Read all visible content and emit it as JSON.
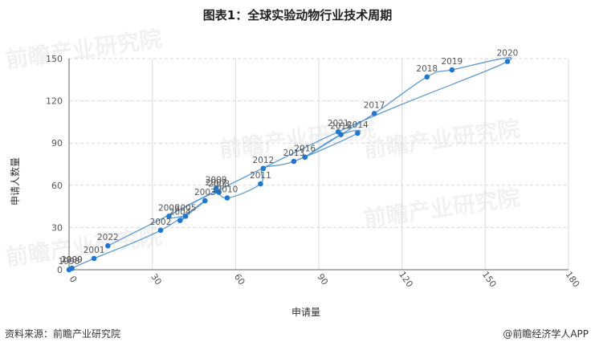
{
  "title": "图表1：全球实验动物行业技术周期",
  "footer": {
    "source": "资料来源：前瞻产业研究院",
    "brand": "@前瞻经济学人APP"
  },
  "watermark": "前瞻产业研究院",
  "colors": {
    "line": "#5b9bd5",
    "point": "#1f77d0",
    "grid": "#d9d9d9",
    "axis": "#666666"
  },
  "chart_data": {
    "type": "line",
    "xlabel": "申请量",
    "ylabel": "申请人数量",
    "xlim": [
      0,
      180
    ],
    "ylim": [
      0,
      150
    ],
    "xticks": [
      0,
      30,
      60,
      90,
      120,
      150,
      180
    ],
    "yticks": [
      0,
      30,
      60,
      90,
      120,
      150
    ],
    "grid": {
      "x": true,
      "y": true
    },
    "series": [
      {
        "points": [
          {
            "label": "1998",
            "x": 0,
            "y": 0
          },
          {
            "label": "1999",
            "x": 1,
            "y": 1
          },
          {
            "label": "2000",
            "x": 1,
            "y": 1
          },
          {
            "label": "2001",
            "x": 9,
            "y": 8
          },
          {
            "label": "2002",
            "x": 33,
            "y": 28
          },
          {
            "label": "2003",
            "x": 49,
            "y": 49
          },
          {
            "label": "2004",
            "x": 40,
            "y": 35
          },
          {
            "label": "2005",
            "x": 42,
            "y": 38
          },
          {
            "label": "2006",
            "x": 36,
            "y": 38
          },
          {
            "label": "2007",
            "x": 53,
            "y": 56
          },
          {
            "label": "2008",
            "x": 54,
            "y": 55
          },
          {
            "label": "2009",
            "x": 53,
            "y": 58
          },
          {
            "label": "2010",
            "x": 57,
            "y": 51
          },
          {
            "label": "2011",
            "x": 69,
            "y": 61
          },
          {
            "label": "2012",
            "x": 70,
            "y": 72
          },
          {
            "label": "2013",
            "x": 81,
            "y": 77
          },
          {
            "label": "2014",
            "x": 104,
            "y": 97
          },
          {
            "label": "2015",
            "x": 98,
            "y": 96
          },
          {
            "label": "2016",
            "x": 85,
            "y": 80
          },
          {
            "label": "2017",
            "x": 110,
            "y": 111
          },
          {
            "label": "2018",
            "x": 129,
            "y": 137
          },
          {
            "label": "2019",
            "x": 138,
            "y": 142
          },
          {
            "label": "2020",
            "x": 158,
            "y": 148
          },
          {
            "label": "2021",
            "x": 97,
            "y": 98
          },
          {
            "label": "2022",
            "x": 14,
            "y": 17
          }
        ]
      }
    ]
  }
}
